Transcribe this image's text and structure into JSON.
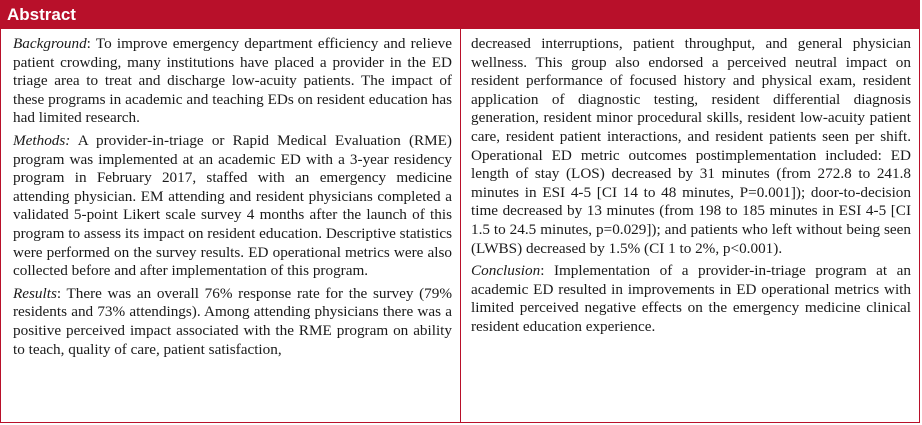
{
  "header": {
    "title": "Abstract"
  },
  "left_column": {
    "background": {
      "label": "Background",
      "text": ": To improve emergency department efficiency and relieve patient crowding, many institutions have placed a provider in the ED triage area to treat and discharge low-acuity patients. The impact of these programs in academic and teaching EDs on resident education has had limited research."
    },
    "methods": {
      "label": "Methods:",
      "text": " A provider-in-triage or Rapid Medical Evaluation (RME) program was implemented at an academic ED with a 3-year residency program in February 2017, staffed with an emergency medicine attending physician. EM attending and resident physicians completed a validated 5-point Likert scale survey 4 months after the launch of this program to assess its impact on resident education. Descriptive statistics were performed on the survey results. ED operational metrics were also collected before and after implementation of this program."
    },
    "results": {
      "label": "Results",
      "text": ": There was an overall 76% response rate for the survey (79% residents and 73% attendings). Among attending physicians there was a positive perceived impact associated with the RME program on ability to teach, quality of care, patient satisfaction,"
    }
  },
  "right_column": {
    "results_cont": {
      "text": "decreased interruptions, patient throughput, and general physician wellness. This group also endorsed a perceived neutral impact on resident performance of focused history and physical exam, resident application of diagnostic testing, resident differential diagnosis generation, resident minor procedural skills, resident low-acuity patient care, resident patient interactions, and resident patients seen per shift. Operational ED metric outcomes postimplementation included: ED length of stay (LOS) decreased by 31 minutes (from 272.8 to 241.8 minutes in ESI 4-5 [CI 14 to 48 minutes, P=0.001]); door-to-decision time decreased by 13 minutes (from 198 to 185 minutes in ESI 4-5 [CI 1.5 to 24.5 minutes, p=0.029]); and patients who left without being seen (LWBS) decreased by 1.5% (CI 1 to 2%, p<0.001)."
    },
    "conclusion": {
      "label": "Conclusion",
      "text": ": Implementation of a provider-in-triage program at an academic ED resulted in improvements in ED operational metrics with limited perceived negative effects on the emergency medicine clinical resident education experience."
    }
  },
  "colors": {
    "accent": "#b8102a",
    "text": "#1a1a1a",
    "header_text": "#ffffff"
  }
}
